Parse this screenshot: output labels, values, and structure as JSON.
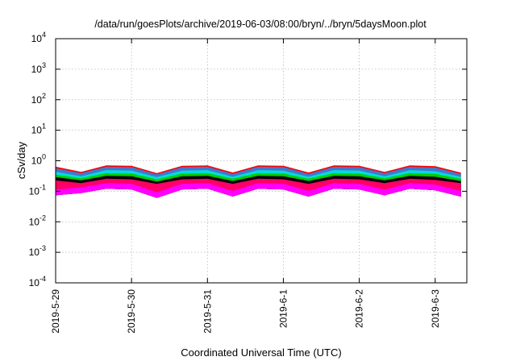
{
  "chart_data": {
    "type": "area",
    "title": "/data/run/goesPlots/archive/2019-06-03/08:00/bryn/../bryn/5daysMoon.plot",
    "xlabel": "Coordinated Universal Time (UTC)",
    "ylabel": "cSv/day",
    "yscale": "log",
    "ylim": [
      0.0001,
      10000
    ],
    "xlim": [
      "2019-05-29",
      "2019-06-03T10:00"
    ],
    "y_ticks": [
      {
        "base": "10",
        "exp": "-4",
        "value": 0.0001
      },
      {
        "base": "10",
        "exp": "-3",
        "value": 0.001
      },
      {
        "base": "10",
        "exp": "-2",
        "value": 0.01
      },
      {
        "base": "10",
        "exp": "-1",
        "value": 0.1
      },
      {
        "base": "10",
        "exp": "0",
        "value": 1
      },
      {
        "base": "10",
        "exp": "1",
        "value": 10
      },
      {
        "base": "10",
        "exp": "2",
        "value": 100
      },
      {
        "base": "10",
        "exp": "3",
        "value": 1000
      },
      {
        "base": "10",
        "exp": "4",
        "value": 10000
      }
    ],
    "x_ticks": [
      "2019-5-29",
      "2019-5-30",
      "2019-5-31",
      "2019-6-1",
      "2019-6-2",
      "2019-6-3"
    ],
    "grid": true,
    "legend": "none",
    "series": [
      {
        "color": "#ff00ff",
        "band": "low",
        "x": [
          "2019-05-29T00:00",
          "2019-05-29T08:00",
          "2019-05-29T16:00",
          "2019-05-30T00:00",
          "2019-05-30T08:00",
          "2019-05-30T16:00",
          "2019-05-31T00:00",
          "2019-05-31T08:00",
          "2019-05-31T16:00",
          "2019-06-01T00:00",
          "2019-06-01T08:00",
          "2019-06-01T16:00",
          "2019-06-02T00:00",
          "2019-06-02T08:00",
          "2019-06-02T16:00",
          "2019-06-03T00:00",
          "2019-06-03T08:00"
        ],
        "values": [
          0.11,
          0.13,
          0.18,
          0.17,
          0.09,
          0.17,
          0.18,
          0.1,
          0.18,
          0.17,
          0.1,
          0.18,
          0.17,
          0.11,
          0.18,
          0.16,
          0.1
        ]
      },
      {
        "color": "#ff0066",
        "band": "red",
        "x": [
          "2019-05-29T00:00",
          "2019-05-29T08:00",
          "2019-05-29T16:00",
          "2019-05-30T00:00",
          "2019-05-30T08:00",
          "2019-05-30T16:00",
          "2019-05-31T00:00",
          "2019-05-31T08:00",
          "2019-05-31T16:00",
          "2019-06-01T00:00",
          "2019-06-01T08:00",
          "2019-06-01T16:00",
          "2019-06-02T00:00",
          "2019-06-02T08:00",
          "2019-06-02T16:00",
          "2019-06-03T00:00",
          "2019-06-03T08:00"
        ],
        "values": [
          0.22,
          0.18,
          0.25,
          0.24,
          0.17,
          0.24,
          0.25,
          0.17,
          0.25,
          0.24,
          0.17,
          0.25,
          0.24,
          0.18,
          0.25,
          0.23,
          0.18
        ]
      },
      {
        "color": "#000000",
        "band": "black",
        "x": [
          "2019-05-29T00:00",
          "2019-05-29T08:00",
          "2019-05-29T16:00",
          "2019-05-30T00:00",
          "2019-05-30T08:00",
          "2019-05-30T16:00",
          "2019-05-31T00:00",
          "2019-05-31T08:00",
          "2019-05-31T16:00",
          "2019-06-01T00:00",
          "2019-06-01T08:00",
          "2019-06-01T16:00",
          "2019-06-02T00:00",
          "2019-06-02T08:00",
          "2019-06-02T16:00",
          "2019-06-03T00:00",
          "2019-06-03T08:00"
        ],
        "values": [
          0.28,
          0.22,
          0.31,
          0.3,
          0.2,
          0.3,
          0.31,
          0.21,
          0.31,
          0.3,
          0.21,
          0.31,
          0.3,
          0.22,
          0.31,
          0.29,
          0.21
        ]
      },
      {
        "color": "#00cc00",
        "band": "green",
        "x": [
          "2019-05-29T00:00",
          "2019-05-29T08:00",
          "2019-05-29T16:00",
          "2019-05-30T00:00",
          "2019-05-30T08:00",
          "2019-05-30T16:00",
          "2019-05-31T00:00",
          "2019-05-31T08:00",
          "2019-05-31T16:00",
          "2019-06-01T00:00",
          "2019-06-01T08:00",
          "2019-06-01T16:00",
          "2019-06-02T00:00",
          "2019-06-02T08:00",
          "2019-06-02T16:00",
          "2019-06-03T00:00",
          "2019-06-03T08:00"
        ],
        "values": [
          0.34,
          0.26,
          0.38,
          0.37,
          0.24,
          0.37,
          0.38,
          0.25,
          0.38,
          0.37,
          0.25,
          0.38,
          0.37,
          0.26,
          0.38,
          0.36,
          0.25
        ]
      },
      {
        "color": "#00dddd",
        "band": "cyan",
        "x": [
          "2019-05-29T00:00",
          "2019-05-29T08:00",
          "2019-05-29T16:00",
          "2019-05-30T00:00",
          "2019-05-30T08:00",
          "2019-05-30T16:00",
          "2019-05-31T00:00",
          "2019-05-31T08:00",
          "2019-05-31T16:00",
          "2019-06-01T00:00",
          "2019-06-01T08:00",
          "2019-06-01T16:00",
          "2019-06-02T00:00",
          "2019-06-02T08:00",
          "2019-06-02T16:00",
          "2019-06-03T00:00",
          "2019-06-03T08:00"
        ],
        "values": [
          0.42,
          0.3,
          0.48,
          0.46,
          0.28,
          0.46,
          0.48,
          0.29,
          0.48,
          0.46,
          0.29,
          0.48,
          0.46,
          0.3,
          0.48,
          0.44,
          0.29
        ]
      },
      {
        "color": "#4477cc",
        "band": "blue",
        "x": [
          "2019-05-29T00:00",
          "2019-05-29T08:00",
          "2019-05-29T16:00",
          "2019-05-30T00:00",
          "2019-05-30T08:00",
          "2019-05-30T16:00",
          "2019-05-31T00:00",
          "2019-05-31T08:00",
          "2019-05-31T16:00",
          "2019-06-01T00:00",
          "2019-06-01T08:00",
          "2019-06-01T16:00",
          "2019-06-02T00:00",
          "2019-06-02T08:00",
          "2019-06-02T16:00",
          "2019-06-03T00:00",
          "2019-06-03T08:00"
        ],
        "values": [
          0.55,
          0.38,
          0.62,
          0.6,
          0.35,
          0.6,
          0.62,
          0.36,
          0.62,
          0.6,
          0.36,
          0.62,
          0.6,
          0.38,
          0.62,
          0.58,
          0.36
        ]
      },
      {
        "color": "#ff0000",
        "band": "top",
        "x": [
          "2019-05-29T00:00",
          "2019-05-29T08:00",
          "2019-05-29T16:00",
          "2019-05-30T00:00",
          "2019-05-30T08:00",
          "2019-05-30T16:00",
          "2019-05-31T00:00",
          "2019-05-31T08:00",
          "2019-05-31T16:00",
          "2019-06-01T00:00",
          "2019-06-01T08:00",
          "2019-06-01T16:00",
          "2019-06-02T00:00",
          "2019-06-02T08:00",
          "2019-06-02T16:00",
          "2019-06-03T00:00",
          "2019-06-03T08:00"
        ],
        "values": [
          0.62,
          0.42,
          0.68,
          0.66,
          0.38,
          0.66,
          0.68,
          0.4,
          0.68,
          0.66,
          0.4,
          0.68,
          0.66,
          0.42,
          0.68,
          0.64,
          0.4
        ]
      }
    ]
  }
}
